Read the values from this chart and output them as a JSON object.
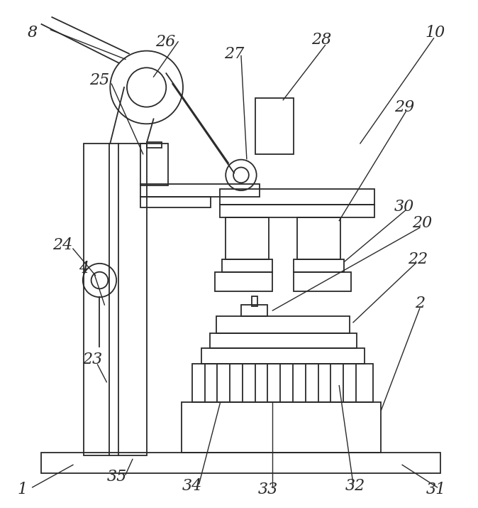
{
  "bg_color": "#ffffff",
  "line_color": "#2a2a2a",
  "lw": 1.3,
  "fig_width": 6.74,
  "fig_height": 7.15
}
